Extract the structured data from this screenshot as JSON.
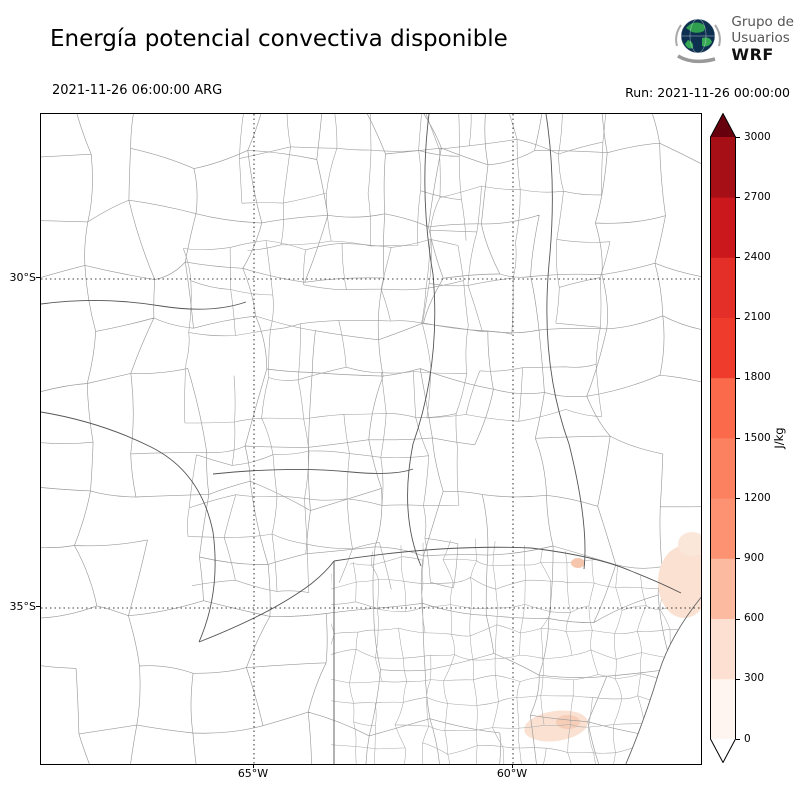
{
  "header": {
    "title": "Energía potencial convectiva disponible",
    "valid_time": "2021-11-26 06:00:00 ARG",
    "run_label": "Run: 2021-11-26 00:00:00"
  },
  "logo": {
    "org_line1": "Grupo de",
    "org_line2": "Usuarios",
    "org_line3": "WRF"
  },
  "map": {
    "lat_ticks": [
      {
        "label": "30°S"
      },
      {
        "label": "35°S"
      }
    ],
    "lon_ticks": [
      {
        "label": "65°W"
      },
      {
        "label": "60°W"
      }
    ],
    "boundary_color": "#9a9a9a",
    "graticule_style": "dotted"
  },
  "colorbar": {
    "unit": "J/kg",
    "ticks": [
      0,
      300,
      600,
      900,
      1200,
      1500,
      1800,
      2100,
      2400,
      2700,
      3000
    ],
    "band_colors_bottom_to_top": [
      "#fff5f0",
      "#fee0d2",
      "#fcbba1",
      "#fc9272",
      "#fc8161",
      "#fb6a4a",
      "#ef3b2c",
      "#e32f27",
      "#cb181d",
      "#a50f15"
    ],
    "under_color": "#ffffff",
    "over_color": "#67000d"
  },
  "chart_data": {
    "type": "heatmap",
    "title": "Energía potencial convectiva disponible",
    "units": "J/kg",
    "colorbar_ticks": [
      0,
      300,
      600,
      900,
      1200,
      1500,
      1800,
      2100,
      2400,
      2700,
      3000
    ],
    "colorbar_range": [
      0,
      3000
    ],
    "field_summary": "CAPE near 0 J/kg over almost all of the domain; small patches of roughly 100-400 J/kg near the Río de la Plata coast and southern Buenos Aires"
  }
}
